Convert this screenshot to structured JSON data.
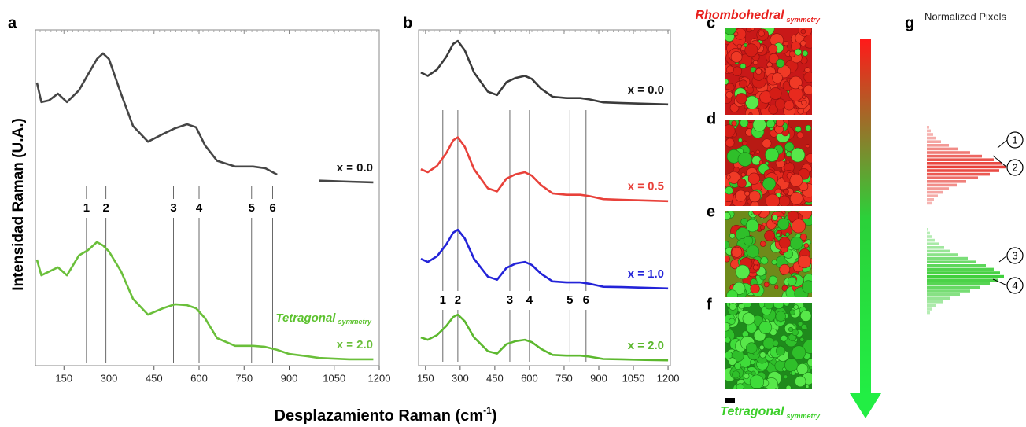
{
  "panel_labels": [
    "a",
    "b",
    "c",
    "d",
    "e",
    "f",
    "g"
  ],
  "ylabel": "Intensidad Raman (U.A.)",
  "xlabel": {
    "text": "Desplazamiento Raman (cm",
    "sup": "-1",
    "end": ")"
  },
  "images": {
    "top_label": {
      "text": "Rhombohedral",
      "sub": "symmetry"
    },
    "bottom_label": {
      "text": "Tetragonal",
      "sub": "symmetry"
    }
  },
  "chart_data": [
    {
      "type": "line",
      "xlim": [
        55,
        1200
      ],
      "xticks": [
        150,
        300,
        450,
        600,
        750,
        900,
        1050,
        1200
      ],
      "ylim": [
        0,
        100
      ],
      "x": [
        60,
        75,
        100,
        130,
        160,
        200,
        230,
        260,
        280,
        300,
        340,
        380,
        430,
        480,
        520,
        560,
        590,
        620,
        660,
        720,
        780,
        820,
        860,
        900,
        960,
        1000,
        1100,
        1180
      ],
      "series": [
        {
          "name": "x = 0.0",
          "color": "#454545",
          "values": [
            84.3,
            78.5,
            79,
            81,
            78.5,
            82,
            86.7,
            91.3,
            93,
            91.3,
            81,
            71.4,
            66.7,
            69,
            70.7,
            71.9,
            71,
            65.6,
            61,
            59.3,
            59.3,
            58.8,
            56.9,
            null,
            null,
            55.1,
            54.8,
            54.6
          ]
        },
        {
          "name": "x = 2.0",
          "color": "#6abf3a",
          "values": [
            31.6,
            26.9,
            28,
            29.3,
            26.9,
            32.8,
            34.4,
            36.8,
            35.8,
            34,
            28.1,
            19.9,
            15.2,
            17.1,
            18.3,
            18,
            17.1,
            14.1,
            8.2,
            5.9,
            5.9,
            5.6,
            4.7,
            3.5,
            2.8,
            2.3,
            1.9,
            1.9
          ]
        }
      ],
      "peak_labels": [
        "1",
        "2",
        "3",
        "4",
        "5",
        "6"
      ],
      "peak_positions": [
        225,
        290,
        515,
        600,
        775,
        845
      ],
      "annotation": {
        "text": "Tetragonal",
        "sub": "symmetry"
      }
    },
    {
      "type": "line",
      "xlim": [
        120,
        1210
      ],
      "xticks": [
        150,
        300,
        450,
        600,
        750,
        900,
        1050,
        1200
      ],
      "ylim": [
        0,
        100
      ],
      "x": [
        130,
        160,
        200,
        240,
        270,
        290,
        320,
        360,
        420,
        460,
        500,
        540,
        580,
        610,
        650,
        700,
        760,
        820,
        860,
        920,
        1000,
        1100,
        1200
      ],
      "series": [
        {
          "name": "x = 0.0",
          "color": "#3a3a3a",
          "values": [
            87.3,
            86.3,
            88.2,
            92,
            95.8,
            96.7,
            93.9,
            87.3,
            81.6,
            80.6,
            84.4,
            85.7,
            86.3,
            85.4,
            82.5,
            80.1,
            79.7,
            79.7,
            79.3,
            78.4,
            78.2,
            78,
            77.8
          ]
        },
        {
          "name": "x = 0.5",
          "color": "#e8413a",
          "values": [
            58.5,
            57.6,
            59.5,
            63.3,
            67.1,
            68,
            65.2,
            58.5,
            52.8,
            51.9,
            55.7,
            57,
            57.6,
            56.6,
            53.8,
            51.3,
            50.9,
            50.9,
            50.5,
            49.6,
            49.4,
            49.2,
            49
          ]
        },
        {
          "name": "x = 1.0",
          "color": "#2323d8",
          "values": [
            31.8,
            30.9,
            32.6,
            36.1,
            39.6,
            40.5,
            37.9,
            31.8,
            26.5,
            25.6,
            29.1,
            30.4,
            30.9,
            30,
            27.4,
            25.1,
            24.8,
            24.8,
            24.4,
            23.5,
            23.4,
            23.2,
            23
          ]
        },
        {
          "name": "x = 2.0",
          "color": "#5cb82e",
          "values": [
            8.4,
            7.7,
            9.1,
            11.8,
            14.5,
            15.2,
            13.2,
            8.4,
            4.3,
            3.6,
            6.4,
            7.3,
            7.7,
            7,
            5,
            3.2,
            3,
            3,
            2.7,
            2,
            1.9,
            1.7,
            1.6
          ]
        }
      ],
      "peak_labels": [
        "1",
        "2",
        "3",
        "4",
        "5",
        "6"
      ],
      "peak_positions": [
        225,
        290,
        515,
        600,
        775,
        845
      ]
    },
    {
      "type": "barh",
      "title": "Normalized Pixels",
      "xlim": [
        0,
        100
      ],
      "series": [
        {
          "color": "#e8413a",
          "values": [
            3,
            5,
            8,
            12,
            18,
            28,
            40,
            55,
            70,
            85,
            95,
            100,
            92,
            80,
            65,
            50,
            38,
            28,
            20,
            14,
            9,
            6
          ]
        },
        {
          "color": "#3ecf3a",
          "values": [
            2,
            4,
            6,
            10,
            15,
            22,
            30,
            40,
            52,
            63,
            75,
            85,
            93,
            98,
            90,
            80,
            68,
            55,
            42,
            30,
            20,
            12,
            7,
            4
          ]
        }
      ],
      "markers": [
        "1",
        "2",
        "3",
        "4"
      ]
    }
  ]
}
